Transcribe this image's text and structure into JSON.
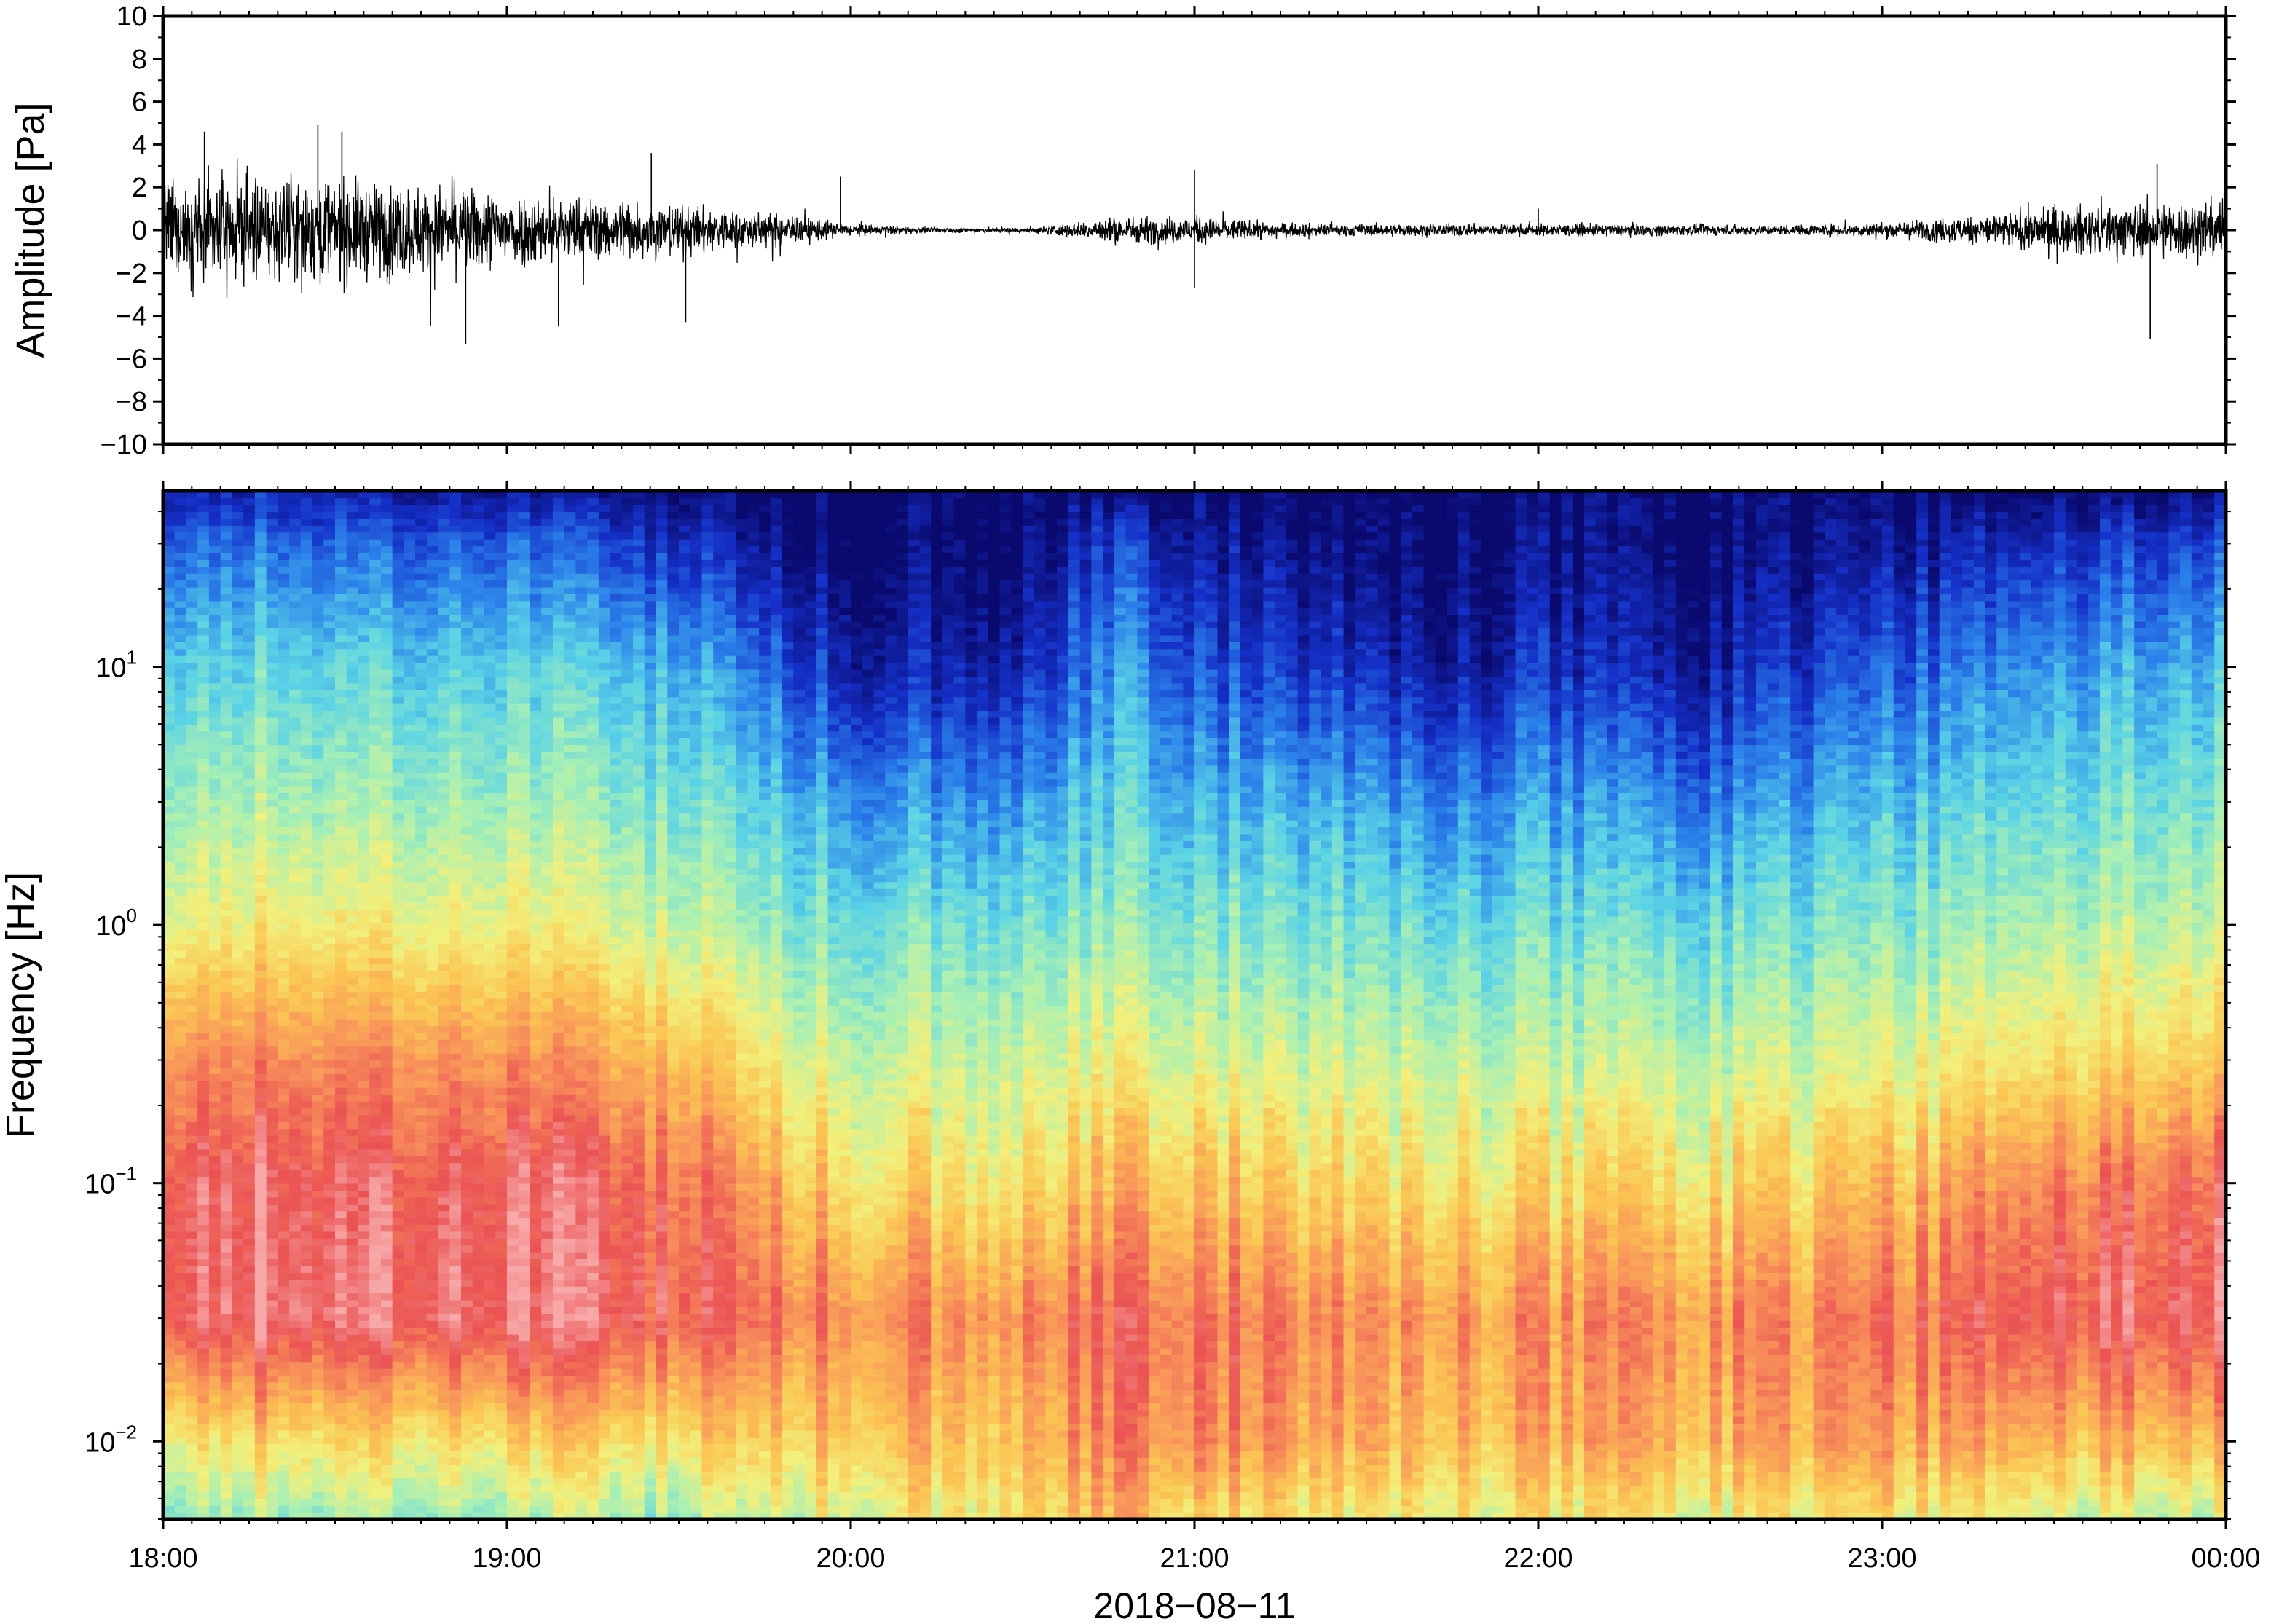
{
  "chart_data": [
    {
      "type": "line",
      "title": "",
      "xlabel": "",
      "ylabel": "Amplitude [Pa]",
      "ylim": [
        -10,
        10
      ],
      "yticks": [
        10,
        8,
        6,
        4,
        2,
        0,
        -2,
        -4,
        -6,
        -8,
        -10
      ],
      "ytick_labels": [
        "10",
        "8",
        "6",
        "4",
        "2",
        "0",
        "−2",
        "−4",
        "−6",
        "−8",
        "−10"
      ],
      "xlim": [
        "2018-08-11 18:00",
        "2018-08-12 00:00"
      ],
      "envelope": {
        "time_h": [
          18.0,
          18.25,
          18.5,
          18.75,
          19.0,
          19.25,
          19.5,
          19.75,
          19.85,
          20.0,
          20.25,
          20.5,
          20.65,
          20.75,
          21.0,
          21.25,
          21.5,
          21.75,
          22.0,
          22.25,
          22.5,
          22.75,
          23.0,
          23.25,
          23.5,
          23.75,
          24.0
        ],
        "amplitude_pa": [
          2.8,
          3.0,
          3.0,
          2.6,
          2.2,
          1.8,
          1.5,
          1.0,
          0.8,
          0.35,
          0.15,
          0.15,
          0.4,
          0.8,
          0.8,
          0.4,
          0.35,
          0.35,
          0.35,
          0.35,
          0.3,
          0.3,
          0.45,
          0.8,
          1.3,
          1.6,
          1.8
        ]
      },
      "peaks": [
        {
          "time_h": 18.12,
          "value": 4.6
        },
        {
          "time_h": 18.45,
          "value": 4.9
        },
        {
          "time_h": 18.52,
          "value": 4.6
        },
        {
          "time_h": 18.88,
          "value": -5.3
        },
        {
          "time_h": 19.15,
          "value": -4.5
        },
        {
          "time_h": 19.42,
          "value": 3.6
        },
        {
          "time_h": 19.52,
          "value": -4.3
        },
        {
          "time_h": 19.97,
          "value": 2.5
        },
        {
          "time_h": 21.0,
          "value": 2.8
        },
        {
          "time_h": 21.0,
          "value": -2.7
        },
        {
          "time_h": 22.0,
          "value": 1.0
        },
        {
          "time_h": 23.8,
          "value": 3.1
        },
        {
          "time_h": 23.78,
          "value": -5.1
        }
      ]
    },
    {
      "type": "heatmap",
      "title": "",
      "xlabel": "2018−08−11",
      "ylabel": "Frequency [Hz]",
      "yscale": "log",
      "ylim": [
        0.005,
        48
      ],
      "yticks": [
        {
          "value": 10,
          "base": "10",
          "exp": "1"
        },
        {
          "value": 1,
          "base": "10",
          "exp": "0"
        },
        {
          "value": 0.1,
          "base": "10",
          "exp": "−1"
        },
        {
          "value": 0.01,
          "base": "10",
          "exp": "−2"
        }
      ],
      "xlim": [
        "2018-08-11 18:00",
        "2018-08-12 00:00"
      ],
      "xtick_labels": [
        "18:00",
        "19:00",
        "20:00",
        "21:00",
        "22:00",
        "23:00",
        "00:00"
      ],
      "colormap": "spectral",
      "colormap_stops": [
        "#0a0a6e",
        "#1530c8",
        "#2b82ea",
        "#5ad3e6",
        "#a8f0b4",
        "#f2f07c",
        "#fbc553",
        "#f8915a",
        "#eb5353",
        "#f7a8a8"
      ],
      "grid": false,
      "power_db": {
        "time_h": [
          18.0,
          18.5,
          19.0,
          19.5,
          19.8,
          20.0,
          20.5,
          20.8,
          21.0,
          21.5,
          21.75,
          22.0,
          22.5,
          22.75,
          23.0,
          23.5,
          24.0
        ],
        "freq_hz": [
          0.005,
          0.01,
          0.03,
          0.1,
          0.3,
          1,
          3,
          10,
          30,
          48
        ],
        "levels": [
          [
            0.45,
            0.62,
            0.95,
            0.95,
            0.8,
            0.58,
            0.46,
            0.36,
            0.22,
            0.1
          ],
          [
            0.46,
            0.63,
            0.96,
            0.93,
            0.8,
            0.58,
            0.46,
            0.35,
            0.2,
            0.08
          ],
          [
            0.45,
            0.62,
            0.95,
            0.92,
            0.78,
            0.56,
            0.44,
            0.34,
            0.18,
            0.06
          ],
          [
            0.46,
            0.62,
            0.9,
            0.86,
            0.7,
            0.5,
            0.4,
            0.3,
            0.12,
            0.02
          ],
          [
            0.52,
            0.66,
            0.84,
            0.72,
            0.56,
            0.42,
            0.32,
            0.18,
            0.03,
            0.0
          ],
          [
            0.55,
            0.68,
            0.8,
            0.62,
            0.5,
            0.38,
            0.26,
            0.08,
            0.0,
            0.0
          ],
          [
            0.6,
            0.68,
            0.78,
            0.6,
            0.5,
            0.38,
            0.25,
            0.08,
            0.0,
            0.0
          ],
          [
            0.7,
            0.8,
            0.86,
            0.7,
            0.55,
            0.42,
            0.34,
            0.26,
            0.14,
            0.0
          ],
          [
            0.62,
            0.8,
            0.84,
            0.68,
            0.52,
            0.4,
            0.3,
            0.16,
            0.06,
            0.0
          ],
          [
            0.58,
            0.72,
            0.78,
            0.62,
            0.5,
            0.38,
            0.28,
            0.1,
            0.01,
            0.0
          ],
          [
            0.56,
            0.68,
            0.76,
            0.6,
            0.48,
            0.36,
            0.22,
            0.05,
            0.0,
            0.0
          ],
          [
            0.56,
            0.7,
            0.76,
            0.6,
            0.48,
            0.36,
            0.26,
            0.1,
            0.02,
            0.0
          ],
          [
            0.56,
            0.72,
            0.78,
            0.62,
            0.48,
            0.36,
            0.22,
            0.06,
            0.0,
            0.0
          ],
          [
            0.56,
            0.72,
            0.78,
            0.62,
            0.5,
            0.38,
            0.27,
            0.12,
            0.02,
            0.0
          ],
          [
            0.58,
            0.74,
            0.82,
            0.68,
            0.52,
            0.4,
            0.3,
            0.16,
            0.04,
            0.0
          ],
          [
            0.52,
            0.7,
            0.9,
            0.8,
            0.6,
            0.46,
            0.36,
            0.26,
            0.1,
            0.0
          ],
          [
            0.5,
            0.7,
            0.94,
            0.88,
            0.66,
            0.5,
            0.4,
            0.3,
            0.16,
            0.02
          ]
        ]
      }
    }
  ]
}
